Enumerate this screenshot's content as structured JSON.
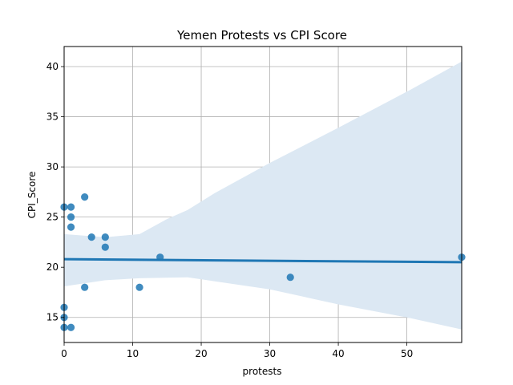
{
  "chart_data": {
    "type": "scatter",
    "title": "Yemen Protests vs CPI Score",
    "xlabel": "protests",
    "ylabel": "CPI_Score",
    "xlim": [
      0,
      58
    ],
    "ylim": [
      12.5,
      42
    ],
    "xticks": [
      0,
      10,
      20,
      30,
      40,
      50
    ],
    "yticks": [
      15,
      20,
      25,
      30,
      35,
      40
    ],
    "grid": true,
    "points": [
      {
        "x": 0,
        "y": 26
      },
      {
        "x": 0,
        "y": 16
      },
      {
        "x": 0,
        "y": 15
      },
      {
        "x": 0,
        "y": 14
      },
      {
        "x": 1,
        "y": 26
      },
      {
        "x": 1,
        "y": 25
      },
      {
        "x": 1,
        "y": 24
      },
      {
        "x": 1,
        "y": 14
      },
      {
        "x": 3,
        "y": 27
      },
      {
        "x": 3,
        "y": 18
      },
      {
        "x": 4,
        "y": 23
      },
      {
        "x": 6,
        "y": 23
      },
      {
        "x": 6,
        "y": 22
      },
      {
        "x": 11,
        "y": 18
      },
      {
        "x": 14,
        "y": 21
      },
      {
        "x": 33,
        "y": 19
      },
      {
        "x": 58,
        "y": 21
      }
    ],
    "regression": {
      "x0": 0,
      "y0": 20.8,
      "x1": 58,
      "y1": 20.5
    },
    "confidence_band": {
      "upper": [
        {
          "x": 0,
          "y": 23.3
        },
        {
          "x": 6,
          "y": 23.0
        },
        {
          "x": 11,
          "y": 23.3
        },
        {
          "x": 15,
          "y": 24.8
        },
        {
          "x": 18,
          "y": 25.7
        },
        {
          "x": 22,
          "y": 27.4
        },
        {
          "x": 30,
          "y": 30.4
        },
        {
          "x": 40,
          "y": 33.9
        },
        {
          "x": 50,
          "y": 37.5
        },
        {
          "x": 58,
          "y": 40.5
        }
      ],
      "lower": [
        {
          "x": 0,
          "y": 18.1
        },
        {
          "x": 6,
          "y": 18.7
        },
        {
          "x": 11,
          "y": 18.9
        },
        {
          "x": 18,
          "y": 19.0
        },
        {
          "x": 22,
          "y": 18.6
        },
        {
          "x": 30,
          "y": 17.8
        },
        {
          "x": 40,
          "y": 16.3
        },
        {
          "x": 50,
          "y": 15.0
        },
        {
          "x": 58,
          "y": 13.8
        }
      ]
    },
    "colors": {
      "points": "#1f77b4",
      "line": "#1f77b4",
      "band": "#dce8f3",
      "grid": "#b0b0b0"
    }
  }
}
